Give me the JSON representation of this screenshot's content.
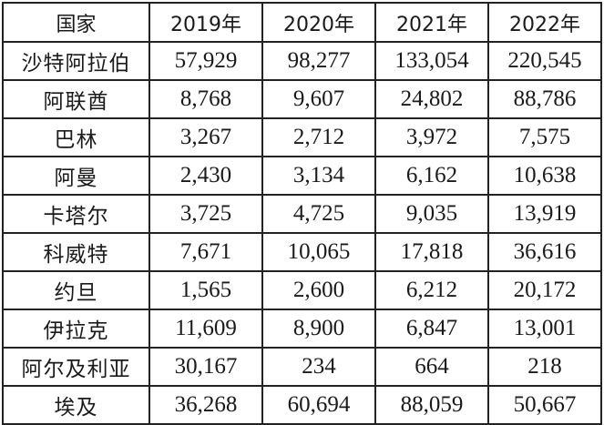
{
  "table": {
    "headers": [
      "国家",
      "2019年",
      "2020年",
      "2021年",
      "2022年"
    ],
    "rows": [
      {
        "country": "沙特阿拉伯",
        "values": [
          "57,929",
          "98,277",
          "133,054",
          "220,545"
        ]
      },
      {
        "country": "阿联酋",
        "values": [
          "8,768",
          "9,607",
          "24,802",
          "88,786"
        ]
      },
      {
        "country": "巴林",
        "values": [
          "3,267",
          "2,712",
          "3,972",
          "7,575"
        ]
      },
      {
        "country": "阿曼",
        "values": [
          "2,430",
          "3,134",
          "6,162",
          "10,638"
        ]
      },
      {
        "country": "卡塔尔",
        "values": [
          "3,725",
          "4,725",
          "9,035",
          "13,919"
        ]
      },
      {
        "country": "科威特",
        "values": [
          "7,671",
          "10,065",
          "17,818",
          "36,616"
        ]
      },
      {
        "country": "约旦",
        "values": [
          "1,565",
          "2,600",
          "6,212",
          "20,172"
        ]
      },
      {
        "country": "伊拉克",
        "values": [
          "11,609",
          "8,900",
          "6,847",
          "13,001"
        ]
      },
      {
        "country": "阿尔及利亚",
        "values": [
          "30,167",
          "234",
          "664",
          "218"
        ]
      },
      {
        "country": "埃及",
        "values": [
          "36,268",
          "60,694",
          "88,059",
          "50,667"
        ]
      }
    ]
  }
}
